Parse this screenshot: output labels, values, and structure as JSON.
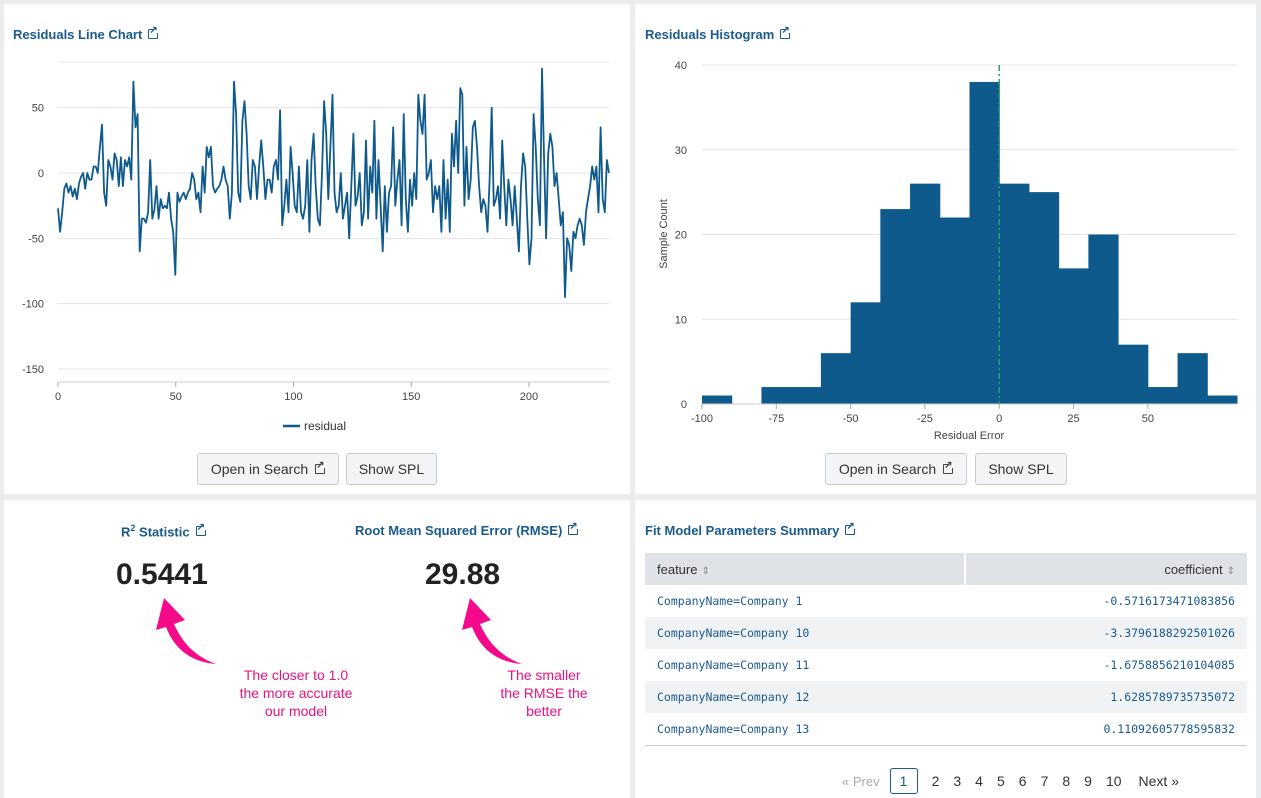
{
  "line_panel": {
    "title": "Residuals Line Chart",
    "buttons": {
      "open_search": "Open in Search",
      "show_spl": "Show SPL"
    }
  },
  "hist_panel": {
    "title": "Residuals Histogram",
    "buttons": {
      "open_search": "Open in Search",
      "show_spl": "Show SPL"
    }
  },
  "stats_panel": {
    "r2_title": "Statistic",
    "r2_prefix": "R",
    "r2_sup": "2",
    "r2_value": "0.5441",
    "rmse_title": "Root Mean Squared Error (RMSE)",
    "rmse_value": "29.88",
    "r2_note": [
      "The closer to 1.0",
      "the more accurate",
      "our model"
    ],
    "rmse_note": [
      "The smaller",
      "the RMSE the",
      "better"
    ]
  },
  "table_panel": {
    "title": "Fit Model Parameters Summary",
    "columns": [
      "feature",
      "coefficient"
    ],
    "rows": [
      [
        "CompanyName=Company 1",
        "-0.5716173471083856"
      ],
      [
        "CompanyName=Company 10",
        "-3.3796188292501026"
      ],
      [
        "CompanyName=Company 11",
        "-1.6758856210104085"
      ],
      [
        "CompanyName=Company 12",
        "1.6285789735735072"
      ],
      [
        "CompanyName=Company 13",
        "0.11092605778595832"
      ]
    ],
    "pager": {
      "prev": "« Prev",
      "pages": [
        "1",
        "2",
        "3",
        "4",
        "5",
        "6",
        "7",
        "8",
        "9",
        "10"
      ],
      "current": "1",
      "next": "Next »"
    }
  },
  "colors": {
    "accent": "#1a5a8e",
    "bar": "#0f5a8c",
    "note": "#e8127c",
    "zero_line": "#2a9d6e"
  },
  "chart_data": [
    {
      "type": "line",
      "title": "Residuals Line Chart",
      "series": [
        {
          "name": "residual",
          "values": [
            -27,
            -45,
            -30,
            -12,
            -8,
            -15,
            -10,
            -18,
            -12,
            -20,
            -8,
            -3,
            0,
            -12,
            0,
            -5,
            -5,
            5,
            5,
            0,
            20,
            37,
            -15,
            -25,
            10,
            5,
            -5,
            15,
            10,
            -10,
            12,
            -10,
            10,
            5,
            12,
            -5,
            70,
            35,
            45,
            -60,
            -35,
            -35,
            -38,
            -30,
            10,
            -35,
            -28,
            -10,
            -35,
            -20,
            -27,
            -25,
            -27,
            -15,
            -35,
            -45,
            -78,
            -15,
            -22,
            -18,
            -15,
            -20,
            -15,
            -12,
            0,
            -5,
            -20,
            -15,
            -30,
            5,
            -15,
            20,
            12,
            20,
            -10,
            -15,
            -12,
            -10,
            -5,
            5,
            -5,
            -10,
            -35,
            -15,
            70,
            45,
            -15,
            -22,
            40,
            55,
            30,
            -10,
            -20,
            10,
            5,
            -20,
            5,
            25,
            5,
            -20,
            -5,
            -5,
            -15,
            5,
            10,
            -5,
            48,
            -40,
            -25,
            -5,
            -30,
            20,
            0,
            -25,
            -30,
            5,
            -30,
            -35,
            -25,
            10,
            -45,
            10,
            30,
            -10,
            -35,
            -40,
            0,
            55,
            30,
            -20,
            20,
            60,
            -15,
            -30,
            -25,
            0,
            -35,
            -25,
            -15,
            -50,
            -10,
            30,
            -25,
            -18,
            0,
            -40,
            -30,
            25,
            -35,
            5,
            -15,
            40,
            -35,
            10,
            -25,
            -60,
            -10,
            -45,
            -15,
            -10,
            35,
            -25,
            -5,
            10,
            -40,
            45,
            -20,
            -45,
            -5,
            -25,
            0,
            -20,
            60,
            40,
            30,
            60,
            -5,
            0,
            10,
            -30,
            -10,
            -20,
            -10,
            -45,
            10,
            -35,
            -5,
            -45,
            30,
            5,
            40,
            0,
            65,
            60,
            -25,
            20,
            -20,
            -5,
            35,
            40,
            20,
            -10,
            -30,
            -20,
            -25,
            -45,
            -5,
            50,
            -25,
            -20,
            -10,
            -35,
            25,
            -10,
            -40,
            -5,
            -20,
            -40,
            -10,
            -35,
            -60,
            -10,
            15,
            5,
            -35,
            -70,
            -50,
            45,
            20,
            -20,
            -40,
            80,
            10,
            -50,
            15,
            30,
            20,
            -10,
            0,
            -20,
            -40,
            -30,
            -95,
            -50,
            -55,
            -75,
            -45,
            -50,
            -40,
            -35,
            -40,
            -55,
            -30,
            -20,
            -10,
            5,
            -5,
            5,
            -30,
            35,
            -20,
            -30,
            10,
            0
          ]
        }
      ],
      "xlim": [
        0,
        234
      ],
      "ylim": [
        -160,
        85
      ],
      "xticks": [
        0,
        50,
        100,
        150,
        200
      ],
      "yticks": [
        50,
        0,
        -50,
        -100,
        -150
      ],
      "legend": "bottom"
    },
    {
      "type": "bar",
      "title": "Residuals Histogram",
      "xlabel": "Residual Error",
      "ylabel": "Sample Count",
      "bin_width": 10,
      "bin_starts": [
        -100,
        -90,
        -80,
        -70,
        -60,
        -50,
        -40,
        -30,
        -20,
        -10,
        0,
        10,
        20,
        30,
        40,
        50,
        60,
        70
      ],
      "values": [
        1,
        0,
        2,
        2,
        6,
        12,
        23,
        26,
        22,
        38,
        26,
        25,
        16,
        20,
        7,
        2,
        6,
        1
      ],
      "xlim": [
        -100,
        80
      ],
      "ylim": [
        0,
        40
      ],
      "xticks": [
        -100,
        -75,
        -50,
        -25,
        0,
        25,
        50
      ],
      "yticks": [
        0,
        10,
        20,
        30,
        40
      ],
      "reference_line_x": 0
    }
  ]
}
